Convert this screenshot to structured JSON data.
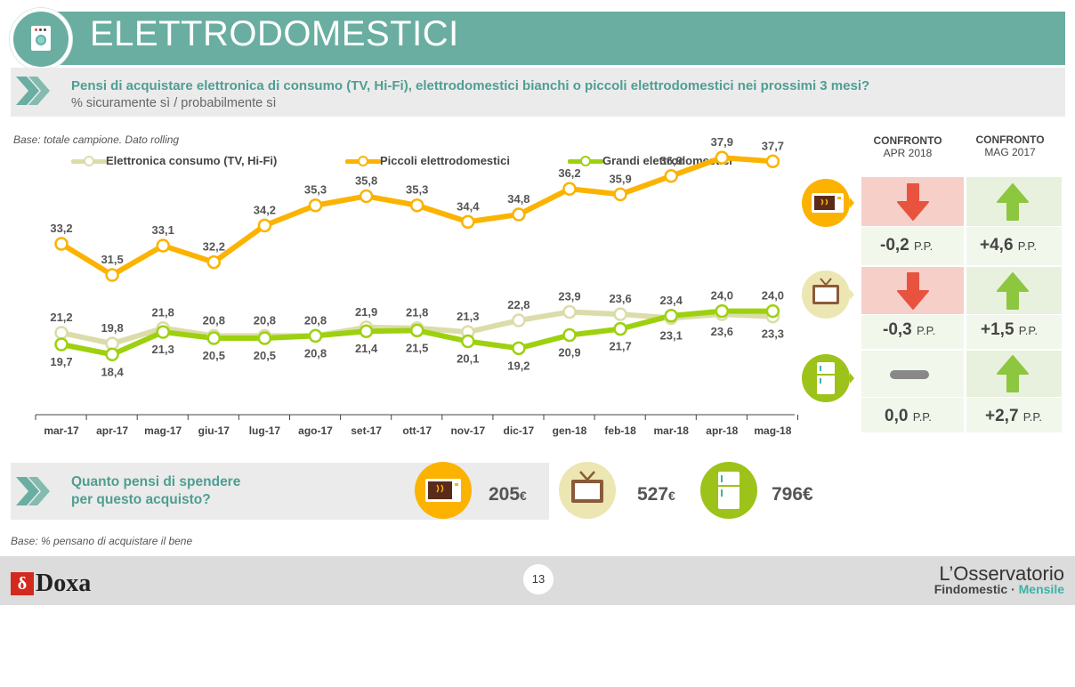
{
  "header": {
    "title": "ELETTRODOMESTICI",
    "question": "Pensi di acquistare elettronica di consumo (TV, Hi-Fi), elettrodomestici bianchi o piccoli elettrodomestici nei prossimi 3 mesi?",
    "subtitle": "% sicuramente sì / probabilmente sì"
  },
  "base_note_chart": "Base: totale campione. Dato rolling",
  "base_note_spend": "Base: % pensano di acquistare il bene",
  "colors": {
    "teal": "#6aaea1",
    "elettronica": "#dcdcaa",
    "piccoli": "#fbb300",
    "grandi": "#9dd10f",
    "down_red": "#e8533f",
    "up_green": "#8dc63f"
  },
  "chart_data": {
    "type": "line",
    "categories": [
      "mar-17",
      "apr-17",
      "mag-17",
      "giu-17",
      "lug-17",
      "ago-17",
      "set-17",
      "ott-17",
      "nov-17",
      "dic-17",
      "gen-18",
      "feb-18",
      "mar-18",
      "apr-18",
      "mag-18"
    ],
    "series": [
      {
        "name": "Elettronica consumo (TV, Hi-Fi)",
        "values": [
          21.2,
          19.8,
          21.8,
          20.8,
          20.8,
          20.8,
          21.9,
          21.8,
          21.3,
          22.8,
          23.9,
          23.6,
          23.1,
          23.6,
          23.3
        ]
      },
      {
        "name": "Piccoli elettrodomestici",
        "values": [
          33.2,
          31.5,
          33.1,
          32.2,
          34.2,
          35.3,
          35.8,
          35.3,
          34.4,
          34.8,
          36.2,
          35.9,
          36.9,
          37.9,
          37.7
        ]
      },
      {
        "name": "Grandi elettrodomestici",
        "values": [
          19.7,
          18.4,
          21.3,
          20.5,
          20.5,
          20.8,
          21.4,
          21.5,
          20.1,
          19.2,
          20.9,
          21.7,
          23.4,
          24.0,
          24.0
        ]
      }
    ],
    "labels": {
      "elettronica": [
        "21,2",
        "19,8",
        "21,8",
        "20,8",
        "20,8",
        "20,8",
        "21,9",
        "21,8",
        "21,3",
        "22,8",
        "23,9",
        "23,6",
        "23,1",
        "23,6",
        "23,3"
      ],
      "piccoli": [
        "33,2",
        "31,5",
        "33,1",
        "32,2",
        "34,2",
        "35,3",
        "35,8",
        "35,3",
        "34,4",
        "34,8",
        "36,2",
        "35,9",
        "36,9",
        "37,9",
        "37,7"
      ],
      "grandi": [
        "19,7",
        "18,4",
        "21,3",
        "20,5",
        "20,5",
        "20,8",
        "21,4",
        "21,5",
        "20,1",
        "19,2",
        "20,9",
        "21,7",
        "23,4",
        "24,0",
        "24,0"
      ]
    },
    "legend_placement": "top",
    "grid": false
  },
  "comparison": {
    "col1": {
      "title": "CONFRONTO",
      "period": "APR 2018"
    },
    "col2": {
      "title": "CONFRONTO",
      "period": "MAG 2017"
    },
    "rows": [
      {
        "item": "piccoli",
        "icon": "microwave-icon",
        "c1_trend": "down",
        "c1_value": "-0,2",
        "c2_trend": "up",
        "c2_value": "+4,6"
      },
      {
        "item": "elettronica",
        "icon": "tv-icon",
        "c1_trend": "down",
        "c1_value": "-0,3",
        "c2_trend": "up",
        "c2_value": "+1,5"
      },
      {
        "item": "grandi",
        "icon": "fridge-icon",
        "c1_trend": "flat",
        "c1_value": "0,0",
        "c2_trend": "up",
        "c2_value": "+2,7"
      }
    ],
    "unit": "P.P."
  },
  "spend": {
    "question_line1": "Quanto pensi di spendere",
    "question_line2": "per questo acquisto?",
    "items": [
      {
        "icon": "microwave-icon",
        "value": "205",
        "currency": "€"
      },
      {
        "icon": "tv-icon",
        "value": "527",
        "currency": "€"
      },
      {
        "icon": "fridge-icon",
        "value": "796€",
        "currency": ""
      }
    ]
  },
  "footer": {
    "page": "13",
    "brand_left": "Doxa",
    "brand_left_mark": "δ",
    "brand_right_title": "L’Osservatorio",
    "brand_right_sub1": "Findomestic",
    "brand_right_sep": " · ",
    "brand_right_sub2": "Mensile"
  }
}
